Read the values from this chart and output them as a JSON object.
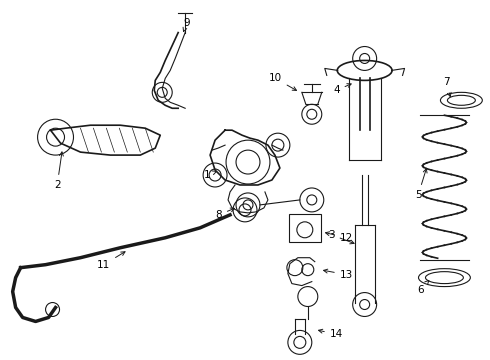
{
  "background_color": "#ffffff",
  "line_color": "#1a1a1a",
  "label_color": "#000000",
  "fig_width": 4.9,
  "fig_height": 3.6,
  "dpi": 100,
  "font_size": 7.5
}
